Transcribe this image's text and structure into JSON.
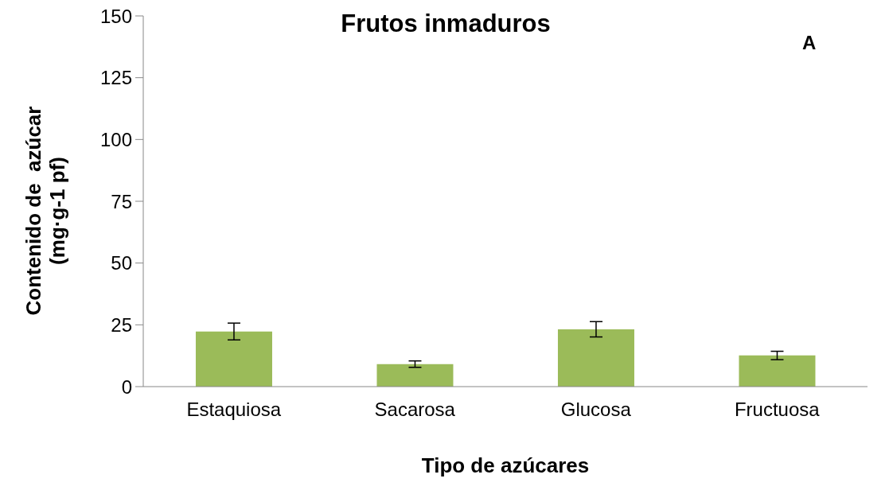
{
  "chart_data": {
    "type": "bar",
    "title": "Frutos inmaduros",
    "xlabel": "Tipo de azúcares",
    "ylabel": "Contenido de  azúcar\n(mg·g-1 pf)",
    "annotations": [
      "A"
    ],
    "categories": [
      "Estaquiosa",
      "Sacarosa",
      "Glucosa",
      "Fructuosa"
    ],
    "values": [
      22.3,
      9.1,
      23.2,
      12.6
    ],
    "errors": [
      3.4,
      1.3,
      3.1,
      1.7
    ],
    "color": "#9bbb59",
    "ylim": [
      0,
      150
    ],
    "yticks": [
      0,
      25,
      50,
      75,
      100,
      125,
      150
    ],
    "grid": false
  }
}
